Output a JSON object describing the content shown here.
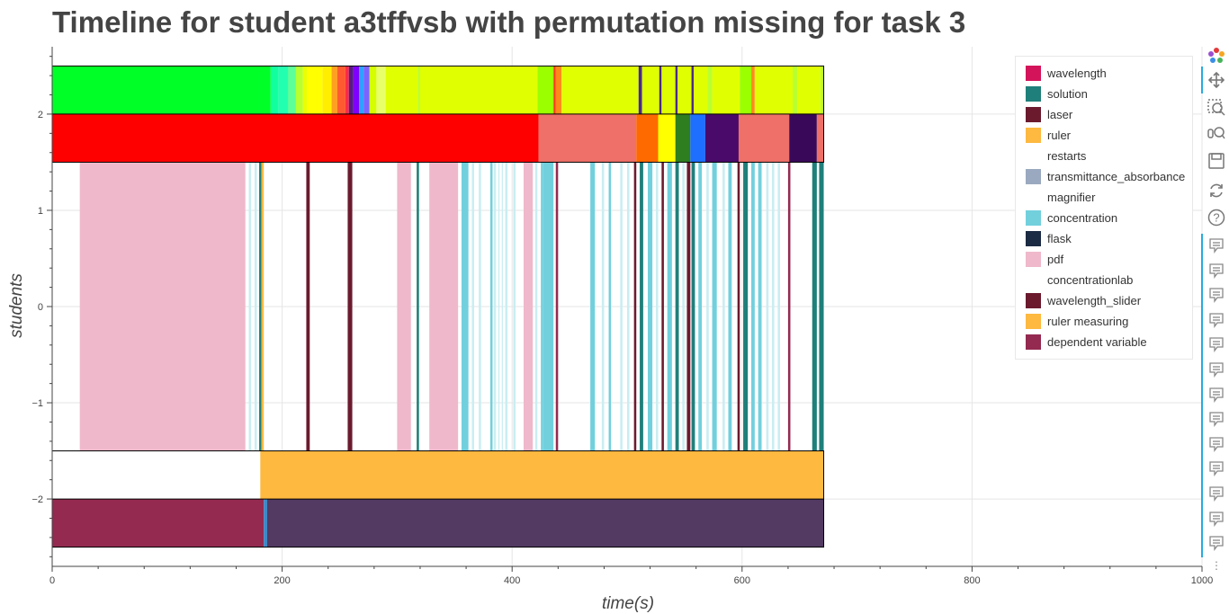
{
  "chart_data": {
    "type": "timeline",
    "title": "Timeline for student a3tffvsb with permutation missing for task 3",
    "xlabel": "time(s)",
    "ylabel": "students",
    "xlim": [
      0,
      1000
    ],
    "ylim": [
      -2.7,
      2.7
    ],
    "x_ticks": [
      0,
      200,
      400,
      600,
      800,
      1000
    ],
    "y_ticks": [
      -2,
      -1,
      0,
      1,
      2
    ],
    "y_tick_labels": [
      "−2",
      "−1",
      "0",
      "1",
      "2"
    ],
    "x_tick_labels": [
      "0",
      "200",
      "400",
      "600",
      "800",
      "1000"
    ],
    "grid": true,
    "legend_position": "top-right",
    "legend": [
      {
        "name": "wavelength",
        "color": "#d4145a"
      },
      {
        "name": "solution",
        "color": "#1f7f7a"
      },
      {
        "name": "laser",
        "color": "#6b1a2e"
      },
      {
        "name": "ruler",
        "color": "#fdb940"
      },
      {
        "name": "restarts",
        "color": "#ffffff"
      },
      {
        "name": "transmittance_absorbance",
        "color": "#9aa9bf"
      },
      {
        "name": "magnifier",
        "color": "#ffffff"
      },
      {
        "name": "concentration",
        "color": "#72d0dd"
      },
      {
        "name": "flask",
        "color": "#1c2b44"
      },
      {
        "name": "pdf",
        "color": "#efb8cb"
      },
      {
        "name": "concentrationlab",
        "color": "#ffffff"
      },
      {
        "name": "wavelength_slider",
        "color": "#6b1a2e"
      },
      {
        "name": "ruler measuring",
        "color": "#fdb940"
      },
      {
        "name": "dependent variable",
        "color": "#942a50"
      }
    ],
    "rows": [
      {
        "y0": 2.0,
        "y1": 2.5,
        "segments": [
          {
            "x0": 0,
            "x1": 190,
            "color": "#00ff26"
          },
          {
            "x0": 190,
            "x1": 197,
            "color": "#12ffa0"
          },
          {
            "x0": 197,
            "x1": 205,
            "color": "#23ffb0"
          },
          {
            "x0": 205,
            "x1": 212,
            "color": "#5cff9a"
          },
          {
            "x0": 212,
            "x1": 218,
            "color": "#b9ff30"
          },
          {
            "x0": 218,
            "x1": 222,
            "color": "#eaff00"
          },
          {
            "x0": 222,
            "x1": 235,
            "color": "#ffff00"
          },
          {
            "x0": 235,
            "x1": 243,
            "color": "#ffee00"
          },
          {
            "x0": 243,
            "x1": 248,
            "color": "#ffa020"
          },
          {
            "x0": 248,
            "x1": 255,
            "color": "#ff5a30"
          },
          {
            "x0": 255,
            "x1": 258,
            "color": "#ff2a45"
          },
          {
            "x0": 258,
            "x1": 262,
            "color": "#5a1a86"
          },
          {
            "x0": 262,
            "x1": 267,
            "color": "#8000ff"
          },
          {
            "x0": 267,
            "x1": 271,
            "color": "#2fa2ff"
          },
          {
            "x0": 271,
            "x1": 276,
            "color": "#7a63ff"
          },
          {
            "x0": 276,
            "x1": 282,
            "color": "#d5ff00"
          },
          {
            "x0": 282,
            "x1": 290,
            "color": "#e9ff6a"
          },
          {
            "x0": 290,
            "x1": 318,
            "color": "#e0ff00"
          },
          {
            "x0": 318,
            "x1": 320,
            "color": "#b9ff30"
          },
          {
            "x0": 320,
            "x1": 422,
            "color": "#e0ff00"
          },
          {
            "x0": 422,
            "x1": 436,
            "color": "#9cff00"
          },
          {
            "x0": 436,
            "x1": 438,
            "color": "#ff3a1a"
          },
          {
            "x0": 438,
            "x1": 443,
            "color": "#ff8a1a"
          },
          {
            "x0": 443,
            "x1": 510,
            "color": "#e0ff00"
          },
          {
            "x0": 510,
            "x1": 513,
            "color": "#4a2a8a"
          },
          {
            "x0": 513,
            "x1": 528,
            "color": "#e0ff00"
          },
          {
            "x0": 528,
            "x1": 530,
            "color": "#4a2a8a"
          },
          {
            "x0": 530,
            "x1": 542,
            "color": "#e0ff00"
          },
          {
            "x0": 542,
            "x1": 544,
            "color": "#4a2a8a"
          },
          {
            "x0": 544,
            "x1": 556,
            "color": "#e0ff00"
          },
          {
            "x0": 556,
            "x1": 558,
            "color": "#4a2a8a"
          },
          {
            "x0": 558,
            "x1": 570,
            "color": "#e0ff00"
          },
          {
            "x0": 570,
            "x1": 574,
            "color": "#b9ff30"
          },
          {
            "x0": 574,
            "x1": 598,
            "color": "#e0ff00"
          },
          {
            "x0": 598,
            "x1": 608,
            "color": "#9cff00"
          },
          {
            "x0": 608,
            "x1": 611,
            "color": "#ff8a1a"
          },
          {
            "x0": 611,
            "x1": 644,
            "color": "#e0ff00"
          },
          {
            "x0": 644,
            "x1": 648,
            "color": "#b9ff30"
          },
          {
            "x0": 648,
            "x1": 668,
            "color": "#e0ff00"
          },
          {
            "x0": 668,
            "x1": 671,
            "color": "#c0ff20"
          }
        ]
      },
      {
        "y0": 1.5,
        "y1": 2.0,
        "segments": [
          {
            "x0": 0,
            "x1": 423,
            "color": "#ff0000"
          },
          {
            "x0": 423,
            "x1": 508,
            "color": "#ee7068"
          },
          {
            "x0": 508,
            "x1": 527,
            "color": "#ff6a00"
          },
          {
            "x0": 527,
            "x1": 542,
            "color": "#ffff00"
          },
          {
            "x0": 542,
            "x1": 555,
            "color": "#2e7d1f"
          },
          {
            "x0": 555,
            "x1": 568,
            "color": "#1e6fff"
          },
          {
            "x0": 568,
            "x1": 597,
            "color": "#4a0a6a"
          },
          {
            "x0": 597,
            "x1": 641,
            "color": "#ee7068"
          },
          {
            "x0": 641,
            "x1": 665,
            "color": "#3a0858"
          },
          {
            "x0": 665,
            "x1": 671,
            "color": "#ee7068"
          }
        ]
      },
      {
        "y0": -1.5,
        "y1": 1.5,
        "segments": [
          {
            "x0": 24,
            "x1": 168,
            "color": "#efb8cb"
          },
          {
            "x0": 171,
            "x1": 173,
            "color": "#c9eef2"
          },
          {
            "x0": 176,
            "x1": 178,
            "color": "#c9eef2"
          },
          {
            "x0": 180,
            "x1": 182,
            "color": "#1f7f7a"
          },
          {
            "x0": 182,
            "x1": 184,
            "color": "#fdb940"
          },
          {
            "x0": 221,
            "x1": 224,
            "color": "#6b1a2e"
          },
          {
            "x0": 257,
            "x1": 261,
            "color": "#6b1a2e"
          },
          {
            "x0": 300,
            "x1": 312,
            "color": "#efb8cb"
          },
          {
            "x0": 317,
            "x1": 319,
            "color": "#1f7f7a"
          },
          {
            "x0": 328,
            "x1": 353,
            "color": "#efb8cb"
          },
          {
            "x0": 356,
            "x1": 362,
            "color": "#72d0dd"
          },
          {
            "x0": 365,
            "x1": 367,
            "color": "#c9eef2"
          },
          {
            "x0": 371,
            "x1": 373,
            "color": "#c9eef2"
          },
          {
            "x0": 381,
            "x1": 383,
            "color": "#72d0dd"
          },
          {
            "x0": 384,
            "x1": 386,
            "color": "#c9eef2"
          },
          {
            "x0": 388,
            "x1": 389,
            "color": "#c9eef2"
          },
          {
            "x0": 391,
            "x1": 392,
            "color": "#c9eef2"
          },
          {
            "x0": 394,
            "x1": 396,
            "color": "#c9eef2"
          },
          {
            "x0": 401,
            "x1": 403,
            "color": "#c9eef2"
          },
          {
            "x0": 410,
            "x1": 418,
            "color": "#efb8cb"
          },
          {
            "x0": 420,
            "x1": 422,
            "color": "#c9eef2"
          },
          {
            "x0": 425,
            "x1": 427,
            "color": "#72d0dd"
          },
          {
            "x0": 427,
            "x1": 436,
            "color": "#72d0dd"
          },
          {
            "x0": 438,
            "x1": 440,
            "color": "#942a50"
          },
          {
            "x0": 468,
            "x1": 472,
            "color": "#72d0dd"
          },
          {
            "x0": 478,
            "x1": 480,
            "color": "#c9eef2"
          },
          {
            "x0": 484,
            "x1": 486,
            "color": "#72d0dd"
          },
          {
            "x0": 494,
            "x1": 496,
            "color": "#c9eef2"
          },
          {
            "x0": 500,
            "x1": 502,
            "color": "#c9eef2"
          },
          {
            "x0": 506,
            "x1": 508,
            "color": "#6b1a2e"
          },
          {
            "x0": 511,
            "x1": 514,
            "color": "#1f7f7a"
          },
          {
            "x0": 518,
            "x1": 522,
            "color": "#72d0dd"
          },
          {
            "x0": 525,
            "x1": 527,
            "color": "#c9eef2"
          },
          {
            "x0": 530,
            "x1": 532,
            "color": "#6b1a2e"
          },
          {
            "x0": 535,
            "x1": 539,
            "color": "#72d0dd"
          },
          {
            "x0": 542,
            "x1": 545,
            "color": "#1f7f7a"
          },
          {
            "x0": 548,
            "x1": 550,
            "color": "#c9eef2"
          },
          {
            "x0": 552,
            "x1": 555,
            "color": "#6b1a2e"
          },
          {
            "x0": 556,
            "x1": 559,
            "color": "#1f7f7a"
          },
          {
            "x0": 562,
            "x1": 565,
            "color": "#72d0dd"
          },
          {
            "x0": 569,
            "x1": 571,
            "color": "#c9eef2"
          },
          {
            "x0": 574,
            "x1": 578,
            "color": "#72d0dd"
          },
          {
            "x0": 583,
            "x1": 585,
            "color": "#c9eef2"
          },
          {
            "x0": 588,
            "x1": 591,
            "color": "#72d0dd"
          },
          {
            "x0": 596,
            "x1": 598,
            "color": "#6b1a2e"
          },
          {
            "x0": 601,
            "x1": 605,
            "color": "#1f7f7a"
          },
          {
            "x0": 608,
            "x1": 611,
            "color": "#72d0dd"
          },
          {
            "x0": 614,
            "x1": 617,
            "color": "#72d0dd"
          },
          {
            "x0": 621,
            "x1": 623,
            "color": "#c9eef2"
          },
          {
            "x0": 626,
            "x1": 628,
            "color": "#c9eef2"
          },
          {
            "x0": 631,
            "x1": 633,
            "color": "#c9eef2"
          },
          {
            "x0": 640,
            "x1": 642,
            "color": "#942a50"
          },
          {
            "x0": 661,
            "x1": 665,
            "color": "#1f7f7a"
          },
          {
            "x0": 667,
            "x1": 671,
            "color": "#1f7f7a"
          }
        ]
      },
      {
        "y0": -2.0,
        "y1": -1.5,
        "segments": [
          {
            "x0": 181,
            "x1": 671,
            "color": "#fdb940"
          }
        ]
      },
      {
        "y0": -2.5,
        "y1": -2.0,
        "segments": [
          {
            "x0": 0,
            "x1": 184,
            "color": "#942a50"
          },
          {
            "x0": 184,
            "x1": 187,
            "color": "#3d88c8"
          },
          {
            "x0": 187,
            "x1": 671,
            "color": "#523a62"
          }
        ]
      }
    ],
    "outlined_rows": [
      [
        1.5,
        2.5
      ],
      [
        -2.5,
        -1.5
      ]
    ],
    "outline_x": [
      0,
      671
    ]
  },
  "toolbar": {
    "tools": [
      "bokeh-logo-icon",
      "pan-icon",
      "box-zoom-icon",
      "wheel-zoom-icon",
      "save-icon",
      "reset-icon",
      "help-icon"
    ],
    "hover_tool_count": 13,
    "more": "⋮"
  },
  "colors": {
    "grid": "#e5e5e5",
    "axis": "#444444",
    "outline": "#000000",
    "toolbar_active": "#26aae1"
  }
}
